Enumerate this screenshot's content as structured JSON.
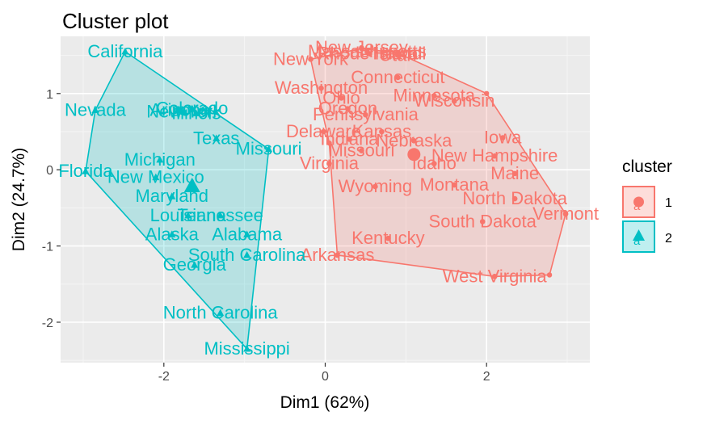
{
  "chart_data": {
    "type": "scatter",
    "title": "Cluster plot",
    "xlabel": "Dim1 (62%)",
    "ylabel": "Dim2 (24.7%)",
    "xlim": [
      -3.28,
      3.28
    ],
    "ylim": [
      -2.53,
      1.75
    ],
    "xticks": [
      -2,
      0,
      2
    ],
    "xtick_labels": [
      "-2",
      "0",
      "2"
    ],
    "yticks": [
      -2,
      -1,
      0,
      1
    ],
    "ytick_labels": [
      "-2",
      "-1",
      "0",
      "1"
    ],
    "grid": true,
    "legend": {
      "title": "cluster",
      "position": "right",
      "entries": [
        "1",
        "2"
      ],
      "glyph": "a"
    },
    "series": [
      {
        "name": "1",
        "color": "#F8766D",
        "marker": "circle",
        "centroid": [
          1.1,
          0.2
        ],
        "hull": [
          [
            -0.18,
            1.45
          ],
          [
            0.45,
            1.59
          ],
          [
            0.9,
            1.53
          ],
          [
            2.0,
            1.0
          ],
          [
            2.98,
            -0.58
          ],
          [
            2.78,
            -1.38
          ],
          [
            2.1,
            -1.4
          ],
          [
            0.15,
            -1.12
          ],
          [
            0.05,
            0.35
          ]
        ],
        "points": [
          {
            "label": "Massachusetts",
            "x": 0.52,
            "y": 1.55
          },
          {
            "label": "New Jersey",
            "x": 0.45,
            "y": 1.6
          },
          {
            "label": "Rhode Island",
            "x": 0.55,
            "y": 1.52
          },
          {
            "label": "Hawaii",
            "x": 0.92,
            "y": 1.52
          },
          {
            "label": "New York",
            "x": -0.18,
            "y": 1.45
          },
          {
            "label": "Utah",
            "x": 0.9,
            "y": 1.5
          },
          {
            "label": "Connecticut",
            "x": 0.9,
            "y": 1.21
          },
          {
            "label": "Washington",
            "x": -0.05,
            "y": 1.07
          },
          {
            "label": "Ohio",
            "x": 0.2,
            "y": 0.94
          },
          {
            "label": "Oregon",
            "x": 0.28,
            "y": 0.8
          },
          {
            "label": "Pennsylvania",
            "x": 0.5,
            "y": 0.72
          },
          {
            "label": "Minnesota",
            "x": 1.35,
            "y": 0.97
          },
          {
            "label": "Wisconsin",
            "x": 1.6,
            "y": 0.9
          },
          {
            "label": "Delaware",
            "x": -0.02,
            "y": 0.5
          },
          {
            "label": "Kansas",
            "x": 0.7,
            "y": 0.5
          },
          {
            "label": "Indiana",
            "x": 0.3,
            "y": 0.4
          },
          {
            "label": "Nebraska",
            "x": 1.1,
            "y": 0.38
          },
          {
            "label": "Iowa",
            "x": 2.2,
            "y": 0.42
          },
          {
            "label": "New Hampshire",
            "x": 2.1,
            "y": 0.18
          },
          {
            "label": "Virginia",
            "x": 0.05,
            "y": 0.08
          },
          {
            "label": "Idaho",
            "x": 1.35,
            "y": 0.08
          },
          {
            "label": "Wyoming",
            "x": 0.62,
            "y": -0.22
          },
          {
            "label": "Montana",
            "x": 1.6,
            "y": -0.2
          },
          {
            "label": "Maine",
            "x": 2.35,
            "y": -0.05
          },
          {
            "label": "North Dakota",
            "x": 2.35,
            "y": -0.38
          },
          {
            "label": "South Dakota",
            "x": 1.95,
            "y": -0.68
          },
          {
            "label": "Kentucky",
            "x": 0.78,
            "y": -0.9
          },
          {
            "label": "Arkansas",
            "x": 0.15,
            "y": -1.12
          },
          {
            "label": "West Virginia",
            "x": 2.1,
            "y": -1.4
          },
          {
            "label": "Vermont",
            "x": 2.98,
            "y": -0.58
          },
          {
            "label": "Missouri",
            "x": 0.45,
            "y": 0.25
          }
        ]
      },
      {
        "name": "2",
        "color": "#00BFC4",
        "marker": "triangle",
        "centroid": [
          -1.65,
          -0.22
        ],
        "hull": [
          [
            -2.48,
            1.55
          ],
          [
            -0.7,
            0.27
          ],
          [
            -0.97,
            -2.35
          ],
          [
            -2.97,
            -0.02
          ],
          [
            -2.85,
            0.78
          ]
        ],
        "points": [
          {
            "label": "California",
            "x": -2.48,
            "y": 1.55
          },
          {
            "label": "Nevada",
            "x": -2.85,
            "y": 0.78
          },
          {
            "label": "Colorado",
            "x": -1.65,
            "y": 0.8
          },
          {
            "label": "New York",
            "x": -1.75,
            "y": 0.76
          },
          {
            "label": "Arizona",
            "x": -1.8,
            "y": 0.78
          },
          {
            "label": "Illinois",
            "x": -1.6,
            "y": 0.74
          },
          {
            "label": "Texas",
            "x": -1.35,
            "y": 0.41
          },
          {
            "label": "Missouri",
            "x": -0.7,
            "y": 0.27
          },
          {
            "label": "Florida",
            "x": -2.97,
            "y": -0.02
          },
          {
            "label": "Michigan",
            "x": -2.05,
            "y": 0.13
          },
          {
            "label": "New Mexico",
            "x": -2.1,
            "y": -0.1
          },
          {
            "label": "Maryland",
            "x": -1.9,
            "y": -0.35
          },
          {
            "label": "Louisiana",
            "x": -1.7,
            "y": -0.6
          },
          {
            "label": "Tennessee",
            "x": -1.3,
            "y": -0.6
          },
          {
            "label": "Alaska",
            "x": -1.9,
            "y": -0.85
          },
          {
            "label": "Alabama",
            "x": -0.97,
            "y": -0.85
          },
          {
            "label": "Georgia",
            "x": -1.62,
            "y": -1.25
          },
          {
            "label": "South Carolina",
            "x": -0.97,
            "y": -1.12
          },
          {
            "label": "North Carolina",
            "x": -1.3,
            "y": -1.88
          },
          {
            "label": "Mississippi",
            "x": -0.97,
            "y": -2.35
          }
        ]
      }
    ]
  }
}
